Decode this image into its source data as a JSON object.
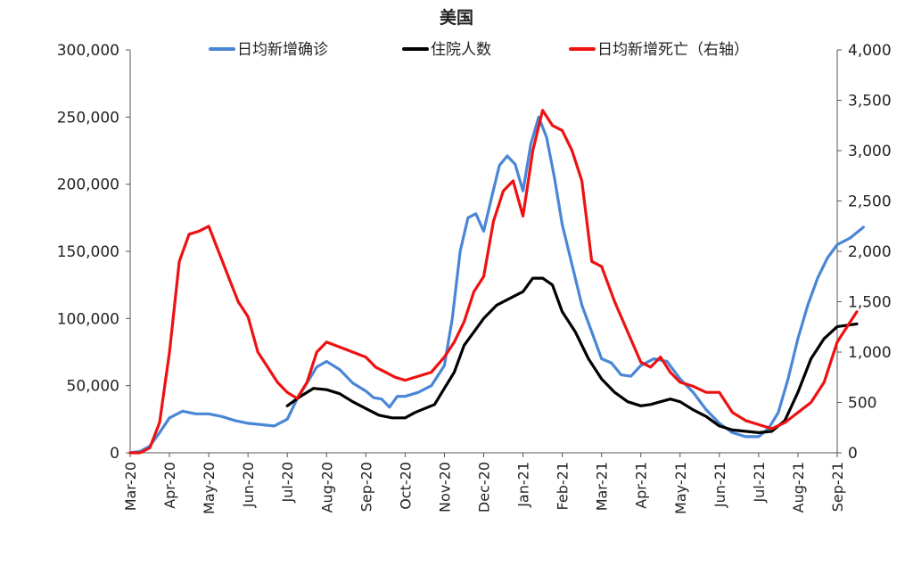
{
  "chart_data": {
    "type": "line",
    "title": "美国",
    "x_categories": [
      "Mar-20",
      "Apr-20",
      "May-20",
      "Jun-20",
      "Jul-20",
      "Aug-20",
      "Sep-20",
      "Oct-20",
      "Nov-20",
      "Dec-20",
      "Jan-21",
      "Feb-21",
      "Mar-21",
      "Apr-21",
      "May-21",
      "Jun-21",
      "Jul-21",
      "Aug-21",
      "Sep-21"
    ],
    "ylim_left": [
      0,
      300000
    ],
    "ylim_right": [
      0,
      4000
    ],
    "left_ticks": [
      "0",
      "50,000",
      "100,000",
      "150,000",
      "200,000",
      "250,000",
      "300,000"
    ],
    "right_ticks": [
      "0",
      "500",
      "1,000",
      "1,500",
      "2,000",
      "2,500",
      "3,000",
      "3,500",
      "4,000"
    ],
    "legend_position": "top",
    "grid": false,
    "series": [
      {
        "name": "日均新增确诊",
        "axis": "left",
        "color": "#4a86d6",
        "points": [
          [
            "Mar-20",
            0
          ],
          [
            "Mar-20",
            1000
          ],
          [
            "Mar-20",
            5000
          ],
          [
            "Mar-20",
            15000
          ],
          [
            "Apr-20",
            26000
          ],
          [
            "Apr-20",
            31000
          ],
          [
            "Apr-20",
            29000
          ],
          [
            "May-20",
            29000
          ],
          [
            "May-20",
            27000
          ],
          [
            "May-20",
            24000
          ],
          [
            "Jun-20",
            22000
          ],
          [
            "Jun-20",
            21000
          ],
          [
            "Jun-20",
            20000
          ],
          [
            "Jul-20",
            25000
          ],
          [
            "Jul-20",
            40000
          ],
          [
            "Jul-20",
            52000
          ],
          [
            "Jul-20",
            64000
          ],
          [
            "Aug-20",
            68000
          ],
          [
            "Aug-20",
            62000
          ],
          [
            "Aug-20",
            52000
          ],
          [
            "Sep-20",
            46000
          ],
          [
            "Sep-20",
            41000
          ],
          [
            "Sep-20",
            40000
          ],
          [
            "Sep-20",
            34000
          ],
          [
            "Sep-20",
            42000
          ],
          [
            "Oct-20",
            42000
          ],
          [
            "Oct-20",
            45000
          ],
          [
            "Oct-20",
            50000
          ],
          [
            "Nov-20",
            65000
          ],
          [
            "Nov-20",
            100000
          ],
          [
            "Nov-20",
            150000
          ],
          [
            "Nov-20",
            175000
          ],
          [
            "Nov-20",
            178000
          ],
          [
            "Dec-20",
            165000
          ],
          [
            "Dec-20",
            190000
          ],
          [
            "Dec-20",
            214000
          ],
          [
            "Dec-20",
            221000
          ],
          [
            "Dec-20",
            215000
          ],
          [
            "Jan-21",
            195000
          ],
          [
            "Jan-21",
            230000
          ],
          [
            "Jan-21",
            250000
          ],
          [
            "Jan-21",
            235000
          ],
          [
            "Jan-21",
            205000
          ],
          [
            "Feb-21",
            170000
          ],
          [
            "Feb-21",
            140000
          ],
          [
            "Feb-21",
            110000
          ],
          [
            "Feb-21",
            90000
          ],
          [
            "Mar-21",
            70000
          ],
          [
            "Mar-21",
            67000
          ],
          [
            "Mar-21",
            58000
          ],
          [
            "Mar-21",
            57000
          ],
          [
            "Apr-21",
            65000
          ],
          [
            "Apr-21",
            70000
          ],
          [
            "Apr-21",
            68000
          ],
          [
            "May-21",
            55000
          ],
          [
            "May-21",
            45000
          ],
          [
            "May-21",
            32000
          ],
          [
            "Jun-21",
            22000
          ],
          [
            "Jun-21",
            15000
          ],
          [
            "Jun-21",
            12000
          ],
          [
            "Jul-21",
            12000
          ],
          [
            "Jul-21",
            18000
          ],
          [
            "Jul-21",
            30000
          ],
          [
            "Jul-21",
            55000
          ],
          [
            "Aug-21",
            85000
          ],
          [
            "Aug-21",
            110000
          ],
          [
            "Aug-21",
            130000
          ],
          [
            "Aug-21",
            145000
          ],
          [
            "Sep-21",
            155000
          ],
          [
            "Sep-21",
            160000
          ],
          [
            "Sep-21",
            168000
          ]
        ]
      },
      {
        "name": "住院人数",
        "axis": "left",
        "color": "#000000",
        "points": [
          [
            "Jul-20",
            35000
          ],
          [
            "Jul-20",
            42000
          ],
          [
            "Jul-20",
            48000
          ],
          [
            "Aug-20",
            47000
          ],
          [
            "Aug-20",
            44000
          ],
          [
            "Aug-20",
            38000
          ],
          [
            "Sep-20",
            33000
          ],
          [
            "Sep-20",
            28000
          ],
          [
            "Sep-20",
            26000
          ],
          [
            "Oct-20",
            26000
          ],
          [
            "Oct-20",
            30000
          ],
          [
            "Oct-20",
            33000
          ],
          [
            "Oct-20",
            36000
          ],
          [
            "Nov-20",
            48000
          ],
          [
            "Nov-20",
            60000
          ],
          [
            "Nov-20",
            80000
          ],
          [
            "Nov-20",
            90000
          ],
          [
            "Dec-20",
            100000
          ],
          [
            "Dec-20",
            110000
          ],
          [
            "Dec-20",
            115000
          ],
          [
            "Jan-21",
            120000
          ],
          [
            "Jan-21",
            130000
          ],
          [
            "Jan-21",
            130000
          ],
          [
            "Jan-21",
            125000
          ],
          [
            "Feb-21",
            105000
          ],
          [
            "Feb-21",
            90000
          ],
          [
            "Feb-21",
            70000
          ],
          [
            "Mar-21",
            55000
          ],
          [
            "Mar-21",
            45000
          ],
          [
            "Mar-21",
            38000
          ],
          [
            "Apr-21",
            35000
          ],
          [
            "Apr-21",
            36000
          ],
          [
            "Apr-21",
            38000
          ],
          [
            "Apr-21",
            40000
          ],
          [
            "May-21",
            38000
          ],
          [
            "May-21",
            32000
          ],
          [
            "May-21",
            27000
          ],
          [
            "Jun-21",
            20000
          ],
          [
            "Jun-21",
            17000
          ],
          [
            "Jun-21",
            16000
          ],
          [
            "Jul-21",
            15000
          ],
          [
            "Jul-21",
            16000
          ],
          [
            "Jul-21",
            24000
          ],
          [
            "Aug-21",
            45000
          ],
          [
            "Aug-21",
            70000
          ],
          [
            "Aug-21",
            85000
          ],
          [
            "Sep-21",
            94000
          ],
          [
            "Sep-21",
            96000
          ]
        ]
      },
      {
        "name": "日均新增死亡（右轴）",
        "axis": "right",
        "color": "#ee1111",
        "points": [
          [
            "Mar-20",
            0
          ],
          [
            "Mar-20",
            0
          ],
          [
            "Mar-20",
            50
          ],
          [
            "Mar-20",
            300
          ],
          [
            "Apr-20",
            1000
          ],
          [
            "Apr-20",
            1900
          ],
          [
            "Apr-20",
            2170
          ],
          [
            "Apr-20",
            2200
          ],
          [
            "May-20",
            2250
          ],
          [
            "May-20",
            2000
          ],
          [
            "May-20",
            1750
          ],
          [
            "May-20",
            1500
          ],
          [
            "Jun-20",
            1350
          ],
          [
            "Jun-20",
            1000
          ],
          [
            "Jun-20",
            850
          ],
          [
            "Jun-20",
            700
          ],
          [
            "Jul-20",
            600
          ],
          [
            "Jul-20",
            540
          ],
          [
            "Jul-20",
            700
          ],
          [
            "Jul-20",
            1000
          ],
          [
            "Aug-20",
            1100
          ],
          [
            "Aug-20",
            1050
          ],
          [
            "Aug-20",
            1000
          ],
          [
            "Sep-20",
            950
          ],
          [
            "Sep-20",
            850
          ],
          [
            "Sep-20",
            800
          ],
          [
            "Sep-20",
            750
          ],
          [
            "Oct-20",
            720
          ],
          [
            "Oct-20",
            760
          ],
          [
            "Oct-20",
            800
          ],
          [
            "Nov-20",
            950
          ],
          [
            "Nov-20",
            1100
          ],
          [
            "Nov-20",
            1300
          ],
          [
            "Nov-20",
            1600
          ],
          [
            "Dec-20",
            1750
          ],
          [
            "Dec-20",
            2300
          ],
          [
            "Dec-20",
            2600
          ],
          [
            "Dec-20",
            2700
          ],
          [
            "Jan-21",
            2350
          ],
          [
            "Jan-21",
            3000
          ],
          [
            "Jan-21",
            3400
          ],
          [
            "Jan-21",
            3250
          ],
          [
            "Feb-21",
            3200
          ],
          [
            "Feb-21",
            3000
          ],
          [
            "Feb-21",
            2700
          ],
          [
            "Feb-21",
            1900
          ],
          [
            "Mar-21",
            1850
          ],
          [
            "Mar-21",
            1500
          ],
          [
            "Mar-21",
            1200
          ],
          [
            "Apr-21",
            900
          ],
          [
            "Apr-21",
            850
          ],
          [
            "Apr-21",
            950
          ],
          [
            "Apr-21",
            800
          ],
          [
            "May-21",
            700
          ],
          [
            "May-21",
            660
          ],
          [
            "May-21",
            600
          ],
          [
            "Jun-21",
            600
          ],
          [
            "Jun-21",
            400
          ],
          [
            "Jun-21",
            320
          ],
          [
            "Jul-21",
            280
          ],
          [
            "Jul-21",
            240
          ],
          [
            "Jul-21",
            300
          ],
          [
            "Aug-21",
            400
          ],
          [
            "Aug-21",
            500
          ],
          [
            "Aug-21",
            700
          ],
          [
            "Sep-21",
            1100
          ],
          [
            "Sep-21",
            1400
          ]
        ]
      }
    ]
  }
}
